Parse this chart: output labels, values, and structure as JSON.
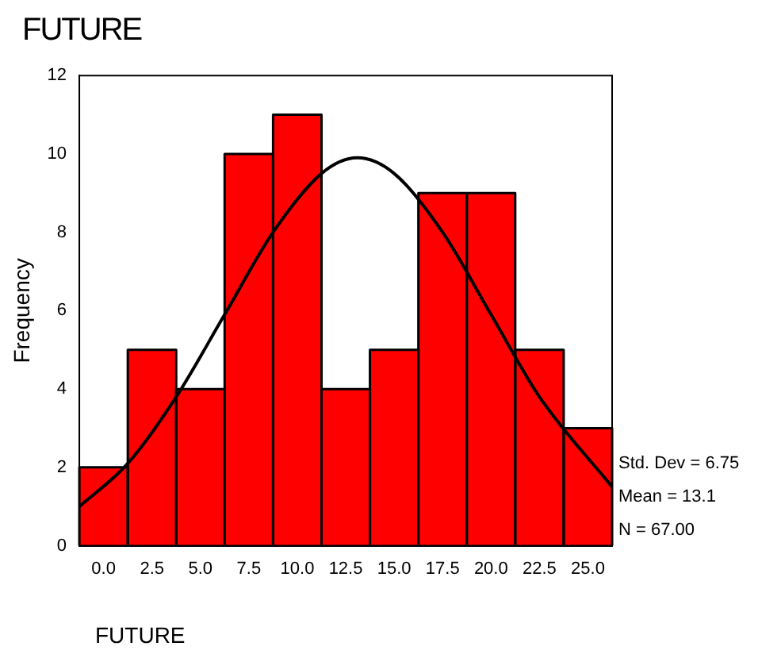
{
  "chart_data": {
    "type": "histogram",
    "title": "FUTURE",
    "xlabel": "FUTURE",
    "ylabel": "Frequency",
    "bins": [
      -1.25,
      1.25,
      3.75,
      6.25,
      8.75,
      11.25,
      13.75,
      16.25,
      18.75,
      21.25,
      23.75,
      26.25
    ],
    "values": [
      2,
      5,
      4,
      10,
      11,
      4,
      5,
      9,
      9,
      5,
      3
    ],
    "color": "#ff0000",
    "series": [
      {
        "type": "line",
        "color": "#000000",
        "x": [
          -1.25,
          1.25,
          3.75,
          6.25,
          8.75,
          11.25,
          13.1,
          15,
          17.5,
          20,
          22.5,
          26.25
        ],
        "values": [
          1.0,
          2.1,
          3.8,
          5.9,
          8.0,
          9.5,
          9.9,
          9.5,
          8.0,
          5.9,
          3.8,
          1.5
        ]
      }
    ],
    "xlim": [
      -1.25,
      26.25
    ],
    "xticks": [
      {
        "value": 0,
        "label": "0.0"
      },
      {
        "value": 2.5,
        "label": "2.5"
      },
      {
        "value": 5,
        "label": "5.0"
      },
      {
        "value": 7.5,
        "label": "7.5"
      },
      {
        "value": 10,
        "label": "10.0"
      },
      {
        "value": 12.5,
        "label": "12.5"
      },
      {
        "value": 15,
        "label": "15.0"
      },
      {
        "value": 17.5,
        "label": "17.5"
      },
      {
        "value": 20,
        "label": "20.0"
      },
      {
        "value": 22.5,
        "label": "22.5"
      },
      {
        "value": 25,
        "label": "25.0"
      }
    ],
    "ylim": [
      0,
      12
    ],
    "yticks": [
      0,
      2,
      4,
      6,
      8,
      10,
      12
    ],
    "annotations": [
      "Std. Dev = 6.75",
      "Mean = 13.1",
      "N = 67.00"
    ],
    "grid": false,
    "legend": false,
    "marker": "none"
  }
}
